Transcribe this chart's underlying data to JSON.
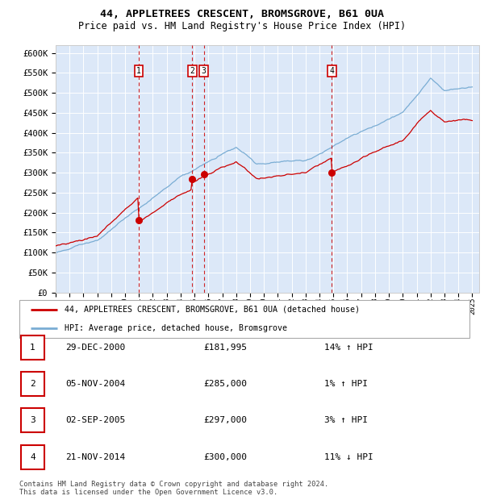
{
  "title1": "44, APPLETREES CRESCENT, BROMSGROVE, B61 0UA",
  "title2": "Price paid vs. HM Land Registry's House Price Index (HPI)",
  "ylim": [
    0,
    620000
  ],
  "yticks": [
    0,
    50000,
    100000,
    150000,
    200000,
    250000,
    300000,
    350000,
    400000,
    450000,
    500000,
    550000,
    600000
  ],
  "ytick_labels": [
    "£0",
    "£50K",
    "£100K",
    "£150K",
    "£200K",
    "£250K",
    "£300K",
    "£350K",
    "£400K",
    "£450K",
    "£500K",
    "£550K",
    "£600K"
  ],
  "xlim_start": 1995.0,
  "xlim_end": 2025.5,
  "background_color": "#dce8f8",
  "red_color": "#cc0000",
  "blue_color": "#7aadd4",
  "sales": [
    {
      "num": 1,
      "year": 2000.99,
      "price": 181995,
      "date": "29-DEC-2000",
      "display_price": "£181,995",
      "pct": "14%",
      "dir": "↑"
    },
    {
      "num": 2,
      "year": 2004.84,
      "price": 285000,
      "date": "05-NOV-2004",
      "display_price": "£285,000",
      "pct": "1%",
      "dir": "↑"
    },
    {
      "num": 3,
      "year": 2005.67,
      "price": 297000,
      "date": "02-SEP-2005",
      "display_price": "£297,000",
      "pct": "3%",
      "dir": "↑"
    },
    {
      "num": 4,
      "year": 2014.89,
      "price": 300000,
      "date": "21-NOV-2014",
      "display_price": "£300,000",
      "pct": "11%",
      "dir": "↓"
    }
  ],
  "legend_line1": "44, APPLETREES CRESCENT, BROMSGROVE, B61 0UA (detached house)",
  "legend_line2": "HPI: Average price, detached house, Bromsgrove",
  "footnote": "Contains HM Land Registry data © Crown copyright and database right 2024.\nThis data is licensed under the Open Government Licence v3.0."
}
